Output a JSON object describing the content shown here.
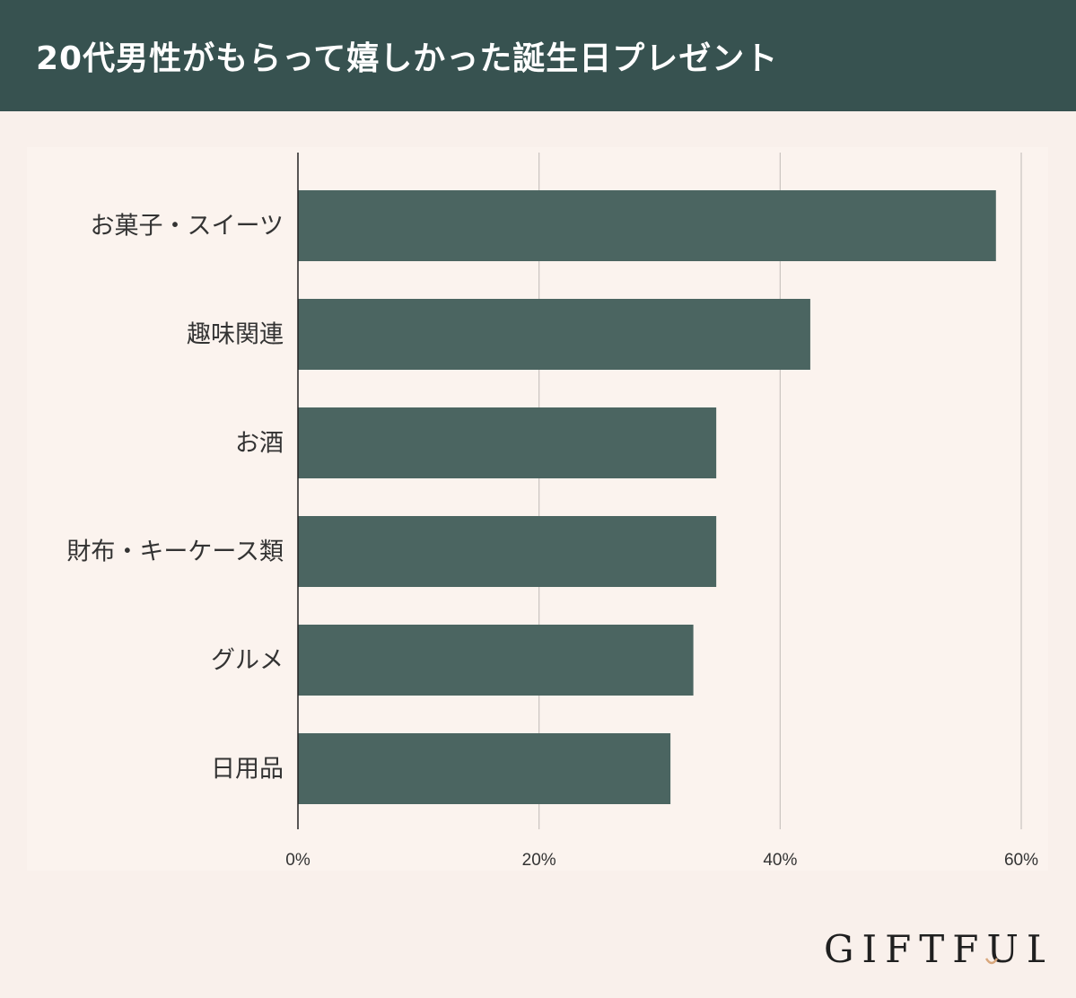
{
  "title": "20代男性がもらって嬉しかった誕生日プレゼント",
  "brand": {
    "name": "GIFTFUL",
    "accent_color": "#d9a77c"
  },
  "colors": {
    "header_bg": "#375250",
    "bar": "#4b6561",
    "background": "#f9f0eb",
    "gridline": "#c9c3bf",
    "axis": "#222222"
  },
  "chart_data": {
    "type": "bar",
    "orientation": "horizontal",
    "title": "20代男性がもらって嬉しかった誕生日プレゼント",
    "categories": [
      "お菓子・スイーツ",
      "趣味関連",
      "お酒",
      "財布・キーケース類",
      "グルメ",
      "日用品"
    ],
    "values": [
      57.9,
      42.5,
      34.7,
      34.7,
      32.8,
      30.9
    ],
    "value_unit": "%",
    "xlim": [
      0,
      60
    ],
    "xticks": [
      0,
      20,
      40,
      60
    ],
    "xtick_labels": [
      "0%",
      "20%",
      "40%",
      "60%"
    ],
    "xlabel": "",
    "ylabel": "",
    "grid": true,
    "legend": "none"
  }
}
